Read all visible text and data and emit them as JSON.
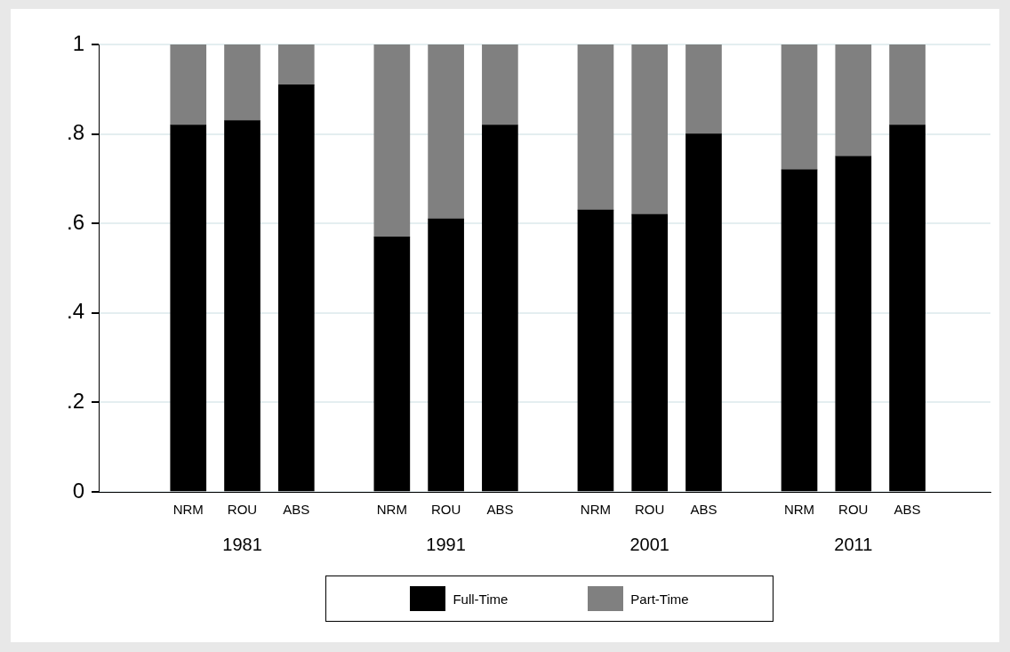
{
  "chart_data": {
    "type": "bar",
    "stacked": true,
    "categories": [
      "NRM",
      "ROU",
      "ABS",
      "NRM",
      "ROU",
      "ABS",
      "NRM",
      "ROU",
      "ABS",
      "NRM",
      "ROU",
      "ABS"
    ],
    "series": [
      {
        "name": "Full-Time",
        "color": "#000000",
        "values": [
          0.82,
          0.83,
          0.91,
          0.57,
          0.61,
          0.82,
          0.63,
          0.62,
          0.8,
          0.72,
          0.75,
          0.82
        ]
      },
      {
        "name": "Part-Time",
        "color": "#808080",
        "values": [
          0.18,
          0.17,
          0.09,
          0.43,
          0.39,
          0.18,
          0.37,
          0.38,
          0.2,
          0.28,
          0.25,
          0.18
        ]
      }
    ],
    "ylim": [
      0,
      1
    ],
    "yticks": [
      0,
      {
        "value": 0.2,
        "label": ".2"
      },
      {
        "value": 0.4,
        "label": ".4"
      },
      {
        "value": 0.6,
        "label": ".6"
      },
      {
        "value": 0.8,
        "label": ".8"
      },
      1
    ],
    "grid": "y",
    "legend": "bottom",
    "annotations": [
      "1981",
      "1991",
      "2001",
      "2011"
    ]
  }
}
